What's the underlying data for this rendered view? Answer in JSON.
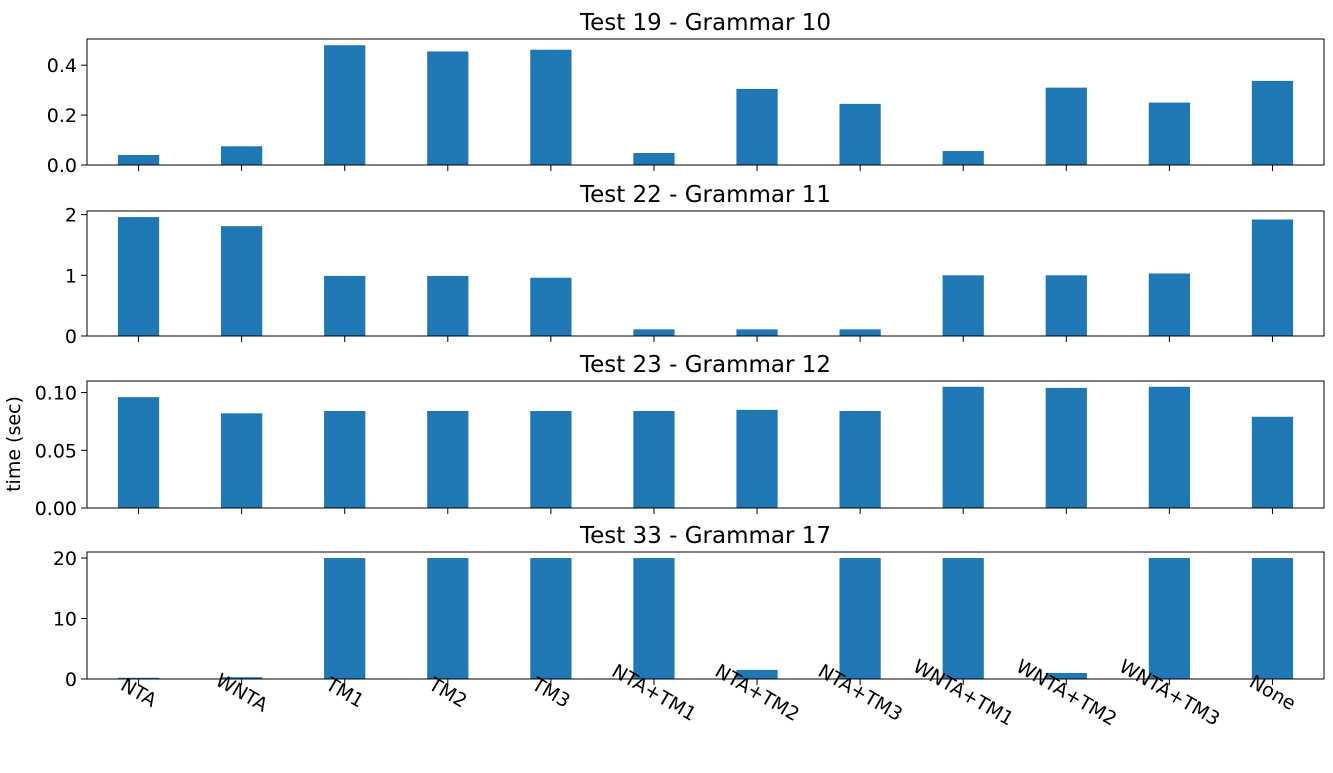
{
  "ylabel": "time (sec)",
  "colors": {
    "bar": "#1f77b4",
    "axis": "#000000",
    "background": "#ffffff"
  },
  "chart_data": [
    {
      "type": "bar",
      "title": "Test 19 - Grammar 10",
      "categories": [
        "NTA",
        "WNTA",
        "TM1",
        "TM2",
        "TM3",
        "NTA+TM1",
        "NTA+TM2",
        "NTA+TM3",
        "WNTA+TM1",
        "WNTA+TM2",
        "WNTA+TM3",
        "None"
      ],
      "values": [
        0.04,
        0.075,
        0.48,
        0.455,
        0.462,
        0.048,
        0.305,
        0.245,
        0.056,
        0.31,
        0.25,
        0.337
      ],
      "ylim": [
        0,
        0.505
      ],
      "yticks": [
        0.0,
        0.2,
        0.4
      ],
      "ytick_labels": [
        "0.0",
        "0.2",
        "0.4"
      ],
      "ylabel": "",
      "grid": false
    },
    {
      "type": "bar",
      "title": "Test 22 - Grammar 11",
      "categories": [
        "NTA",
        "WNTA",
        "TM1",
        "TM2",
        "TM3",
        "NTA+TM1",
        "NTA+TM2",
        "NTA+TM3",
        "WNTA+TM1",
        "WNTA+TM2",
        "WNTA+TM3",
        "None"
      ],
      "values": [
        1.96,
        1.81,
        0.99,
        0.99,
        0.96,
        0.11,
        0.11,
        0.11,
        1.0,
        1.0,
        1.03,
        1.92
      ],
      "ylim": [
        0,
        2.06
      ],
      "yticks": [
        0,
        1,
        2
      ],
      "ytick_labels": [
        "0",
        "1",
        "2"
      ],
      "ylabel": "",
      "grid": false
    },
    {
      "type": "bar",
      "title": "Test 23 - Grammar 12",
      "categories": [
        "NTA",
        "WNTA",
        "TM1",
        "TM2",
        "TM3",
        "NTA+TM1",
        "NTA+TM2",
        "NTA+TM3",
        "WNTA+TM1",
        "WNTA+TM2",
        "WNTA+TM3",
        "None"
      ],
      "values": [
        0.096,
        0.082,
        0.084,
        0.084,
        0.084,
        0.084,
        0.085,
        0.084,
        0.105,
        0.104,
        0.105,
        0.079
      ],
      "ylim": [
        0,
        0.11
      ],
      "yticks": [
        0.0,
        0.05,
        0.1
      ],
      "ytick_labels": [
        "0.00",
        "0.05",
        "0.10"
      ],
      "ylabel": "time (sec)",
      "grid": false
    },
    {
      "type": "bar",
      "title": "Test 33 - Grammar 17",
      "categories": [
        "NTA",
        "WNTA",
        "TM1",
        "TM2",
        "TM3",
        "NTA+TM1",
        "NTA+TM2",
        "NTA+TM3",
        "WNTA+TM1",
        "WNTA+TM2",
        "WNTA+TM3",
        "None"
      ],
      "values": [
        0.2,
        0.3,
        20.0,
        20.0,
        20.0,
        20.0,
        1.5,
        20.0,
        20.0,
        1.0,
        20.0,
        20.0
      ],
      "ylim": [
        0,
        21.0
      ],
      "yticks": [
        0,
        10,
        20
      ],
      "ytick_labels": [
        "0",
        "10",
        "20"
      ],
      "ylabel": "",
      "grid": false
    }
  ]
}
